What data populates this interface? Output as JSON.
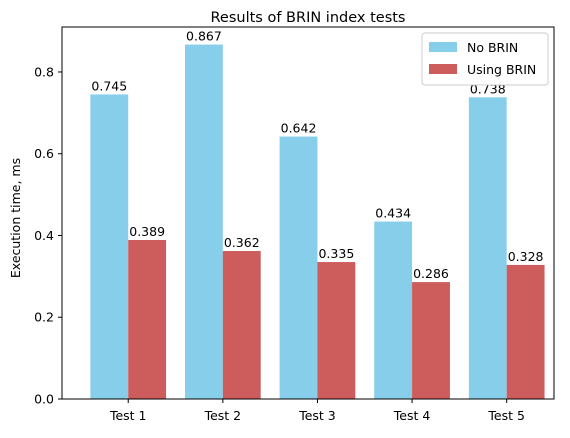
{
  "chart_data": {
    "type": "bar",
    "title": "Results of BRIN index tests",
    "xlabel": "",
    "ylabel": "Execution time, ms",
    "categories": [
      "Test 1",
      "Test 2",
      "Test 3",
      "Test 4",
      "Test 5"
    ],
    "series": [
      {
        "name": "No BRIN",
        "color": "#87ceeb",
        "values": [
          0.745,
          0.867,
          0.642,
          0.434,
          0.738
        ],
        "labels": [
          "0.745",
          "0.867",
          "0.642",
          "0.434",
          "0.738"
        ]
      },
      {
        "name": "Using BRIN",
        "color": "#cd5c5c",
        "values": [
          0.389,
          0.362,
          0.335,
          0.286,
          0.328
        ],
        "labels": [
          "0.389",
          "0.362",
          "0.335",
          "0.286",
          "0.328"
        ]
      }
    ],
    "ylim": [
      0,
      0.91
    ],
    "yticks": [
      0.0,
      0.2,
      0.4,
      0.6,
      0.8
    ],
    "ytick_labels": [
      "0.0",
      "0.2",
      "0.4",
      "0.6",
      "0.8"
    ],
    "grid": false,
    "legend_position": "top-right"
  }
}
